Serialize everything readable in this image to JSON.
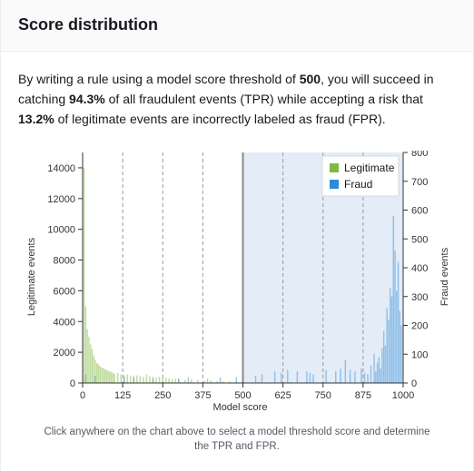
{
  "header": {
    "title": "Score distribution"
  },
  "description": {
    "part1": "By writing a rule using a model score threshold of ",
    "threshold": "500",
    "part2": ", you will succeed in catching ",
    "tpr": "94.3%",
    "part3": " of all fraudulent events (TPR) while accepting a risk that ",
    "fpr": "13.2%",
    "part4": " of legitimate events are incorrectly labeled as fraud (FPR)."
  },
  "caption": "Click anywhere on the chart above to select a model threshold score and determine the TPR and FPR.",
  "chart_data": {
    "type": "bar",
    "xlabel": "Model score",
    "ylabel_left": "Legitimate events",
    "ylabel_right": "Fraud events",
    "xlim": [
      0,
      1000
    ],
    "xticks": [
      0,
      125,
      250,
      375,
      500,
      625,
      750,
      875,
      1000
    ],
    "ylim_left": [
      0,
      15000
    ],
    "yticks_left": [
      0,
      2000,
      4000,
      6000,
      8000,
      10000,
      12000,
      14000
    ],
    "ylim_right": [
      0,
      800
    ],
    "yticks_right": [
      0,
      100,
      200,
      300,
      400,
      500,
      600,
      700,
      800
    ],
    "threshold": 500,
    "grid": "vertical dashed at each x tick",
    "legend_position": "top-right",
    "colors": {
      "legitimate": "#7fba3f",
      "fraud": "#2e8bd6",
      "selection": "#e3ecf7"
    },
    "series": [
      {
        "name": "Legitimate",
        "axis": "left",
        "bin_width": 5,
        "x": [
          5,
          10,
          15,
          20,
          25,
          30,
          35,
          40,
          45,
          50,
          55,
          60,
          65,
          70,
          75,
          80,
          85,
          90,
          95,
          100,
          110,
          120,
          130,
          140,
          150,
          160,
          170,
          180,
          190,
          200,
          210,
          220,
          230,
          240,
          250,
          260,
          270,
          280,
          290,
          300,
          320,
          340,
          360,
          380,
          400,
          420,
          440,
          460,
          480,
          500,
          550,
          600,
          650,
          700,
          750,
          800,
          850,
          900,
          950
        ],
        "values": [
          14000,
          5000,
          3500,
          3000,
          2500,
          2200,
          1800,
          1500,
          1300,
          1200,
          1100,
          1000,
          950,
          900,
          850,
          800,
          750,
          700,
          650,
          600,
          650,
          550,
          500,
          550,
          500,
          450,
          500,
          450,
          400,
          550,
          450,
          400,
          350,
          400,
          350,
          350,
          300,
          250,
          300,
          250,
          200,
          250,
          200,
          150,
          150,
          120,
          100,
          100,
          90,
          80,
          70,
          60,
          50,
          50,
          40,
          40,
          30,
          30,
          20
        ]
      },
      {
        "name": "Fraud",
        "axis": "right",
        "bin_width": 5,
        "x": [
          10,
          40,
          130,
          160,
          220,
          300,
          330,
          390,
          430,
          480,
          540,
          560,
          600,
          620,
          640,
          670,
          700,
          710,
          720,
          760,
          790,
          805,
          820,
          835,
          850,
          870,
          880,
          890,
          900,
          910,
          915,
          920,
          925,
          930,
          935,
          940,
          945,
          950,
          955,
          960,
          965,
          970,
          975,
          980,
          985,
          990,
          995
        ],
        "values": [
          30,
          25,
          20,
          20,
          15,
          15,
          20,
          15,
          20,
          20,
          25,
          30,
          40,
          35,
          45,
          40,
          40,
          35,
          30,
          45,
          40,
          50,
          80,
          45,
          40,
          50,
          35,
          30,
          60,
          100,
          40,
          70,
          90,
          50,
          120,
          180,
          130,
          260,
          220,
          330,
          300,
          580,
          460,
          320,
          420,
          250,
          200
        ]
      }
    ]
  }
}
